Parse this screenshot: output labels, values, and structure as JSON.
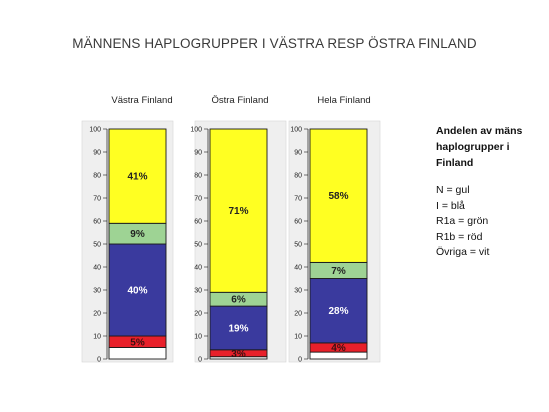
{
  "slide_title": "MÄNNENS  HAPLOGRUPPER I VÄSTRA RESP ÖSTRA FINLAND",
  "legend": {
    "title": "Andelen av mäns haplogrupper  i Finland",
    "lines": [
      "N =  gul",
      "I  =  blå",
      "R1a = grön",
      "R1b = röd",
      "Övriga = vit"
    ]
  },
  "colors": {
    "N": "#ffff22",
    "I": "#3a3a9e",
    "R1a": "#9ed394",
    "R1b": "#e8202a",
    "Ovriga": "#ffffff",
    "panel": "#efefef",
    "stroke": "#1a1a1a"
  },
  "chart_data": [
    {
      "type": "bar",
      "stacked": true,
      "title": "Västra Finland",
      "ylim": [
        0,
        100
      ],
      "yticks": [
        "0",
        "10",
        "20",
        "30",
        "40",
        "50",
        "60",
        "70",
        "80",
        "90",
        "100"
      ],
      "segments": [
        {
          "group": "Ovriga",
          "value": 5,
          "label": ""
        },
        {
          "group": "R1b",
          "value": 5,
          "label": "5%"
        },
        {
          "group": "I",
          "value": 40,
          "label": "40%"
        },
        {
          "group": "R1a",
          "value": 9,
          "label": "9%"
        },
        {
          "group": "N",
          "value": 41,
          "label": "41%"
        }
      ]
    },
    {
      "type": "bar",
      "stacked": true,
      "title": "Östra Finland",
      "ylim": [
        0,
        100
      ],
      "yticks": [
        "0",
        "10",
        "20",
        "30",
        "40",
        "50",
        "60",
        "70",
        "80",
        "90",
        "100"
      ],
      "segments": [
        {
          "group": "Ovriga",
          "value": 1,
          "label": ""
        },
        {
          "group": "R1b",
          "value": 3,
          "label": "3%"
        },
        {
          "group": "I",
          "value": 19,
          "label": "19%"
        },
        {
          "group": "R1a",
          "value": 6,
          "label": "6%"
        },
        {
          "group": "N",
          "value": 71,
          "label": "71%"
        }
      ]
    },
    {
      "type": "bar",
      "stacked": true,
      "title": "Hela Finland",
      "ylim": [
        0,
        100
      ],
      "yticks": [
        "0",
        "10",
        "20",
        "30",
        "40",
        "50",
        "60",
        "70",
        "80",
        "90",
        "100"
      ],
      "segments": [
        {
          "group": "Ovriga",
          "value": 3,
          "label": ""
        },
        {
          "group": "R1b",
          "value": 4,
          "label": "4%"
        },
        {
          "group": "I",
          "value": 28,
          "label": "28%"
        },
        {
          "group": "R1a",
          "value": 7,
          "label": "7%"
        },
        {
          "group": "N",
          "value": 58,
          "label": "58%"
        }
      ]
    }
  ]
}
